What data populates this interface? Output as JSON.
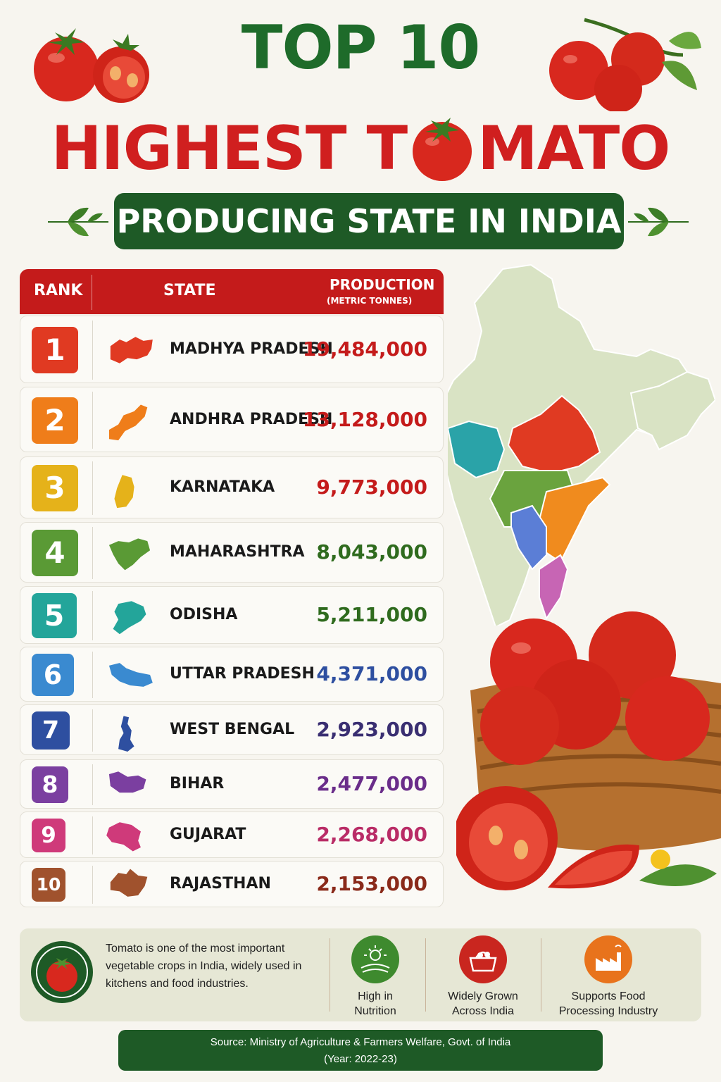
{
  "title": {
    "line1": "TOP 10",
    "line2_pre": "HIGHEST T",
    "line2_post": "MATO",
    "banner": "PRODUCING STATE IN INDIA"
  },
  "table": {
    "headers": {
      "rank": "RANK",
      "state": "STATE",
      "production": "PRODUCTION",
      "unit": "(METRIC TONNES)"
    },
    "rows": [
      {
        "rank": "1",
        "state": "MADHYA PRADESH",
        "value": "19,484,000",
        "color": "#e03a22"
      },
      {
        "rank": "2",
        "state": "ANDHRA PRADESH",
        "value": "13,128,000",
        "color": "#ef7d1a"
      },
      {
        "rank": "3",
        "state": "KARNATAKA",
        "value": "9,773,000",
        "color": "#e5b21a"
      },
      {
        "rank": "4",
        "state": "MAHARASHTRA",
        "value": "8,043,000",
        "color": "#5a9a35"
      },
      {
        "rank": "5",
        "state": "ODISHA",
        "value": "5,211,000",
        "color": "#23a59a"
      },
      {
        "rank": "6",
        "state": "UTTAR PRADESH",
        "value": "4,371,000",
        "color": "#3a8ad0"
      },
      {
        "rank": "7",
        "state": "WEST BENGAL",
        "value": "2,923,000",
        "color": "#2e4fa0"
      },
      {
        "rank": "8",
        "state": "BIHAR",
        "value": "2,477,000",
        "color": "#7b3fa0"
      },
      {
        "rank": "9",
        "state": "GUJARAT",
        "value": "2,268,000",
        "color": "#cf3a7a"
      },
      {
        "rank": "10",
        "state": "RAJASTHAN",
        "value": "2,153,000",
        "color": "#a0522d"
      }
    ]
  },
  "info": {
    "text": "Tomato is one of the most important vegetable crops in India, widely used in kitchens and food industries.",
    "features": [
      {
        "line1": "High in",
        "line2": "Nutrition",
        "icon": "sun-field-icon",
        "color": "#3e8a2e"
      },
      {
        "line1": "Widely Grown",
        "line2": "Across India",
        "icon": "basket-icon",
        "color": "#c9261f"
      },
      {
        "line1": "Supports Food",
        "line2": "Processing Industry",
        "icon": "factory-icon",
        "color": "#e8731c"
      }
    ]
  },
  "source": {
    "line1": "Source: Ministry of Agriculture & Farmers Welfare, Govt. of India",
    "line2": "(Year: 2022-23)"
  },
  "colors": {
    "green": "#1e5a26",
    "red": "#c41b1b"
  }
}
